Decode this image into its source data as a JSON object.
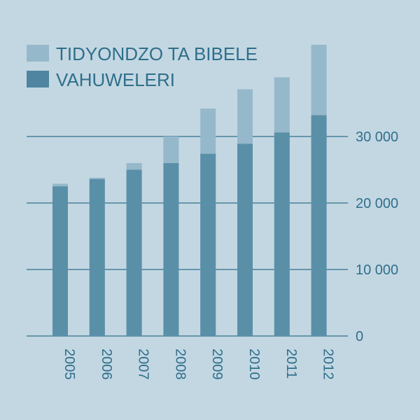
{
  "chart_data": {
    "type": "bar",
    "title": "",
    "xlabel": "",
    "ylabel": "",
    "categories": [
      "2005",
      "2006",
      "2007",
      "2008",
      "2009",
      "2010",
      "2011",
      "2012"
    ],
    "series": [
      {
        "name": "TIDYONDZO TA BIBELE",
        "values": [
          22900,
          23800,
          26000,
          30000,
          34200,
          37100,
          38900,
          43800
        ]
      },
      {
        "name": "VAHUWELERI",
        "values": [
          22500,
          23600,
          25000,
          26000,
          27400,
          28900,
          30600,
          33200
        ]
      }
    ],
    "ylim": [
      0,
      44000
    ],
    "yticks": [
      0,
      10000,
      20000,
      30000
    ],
    "ytick_labels": [
      "0",
      "10 000",
      "20 000",
      "30 000"
    ],
    "grid": true,
    "legend_position": "top-left",
    "colors": {
      "background": "#c3d7e2",
      "light_series": "#96b8cb",
      "dark_series": "#5a8fa8",
      "legend_dark": "#4f85a0",
      "gridline": "#2f6f8b",
      "text": "#2f6f8b"
    }
  }
}
